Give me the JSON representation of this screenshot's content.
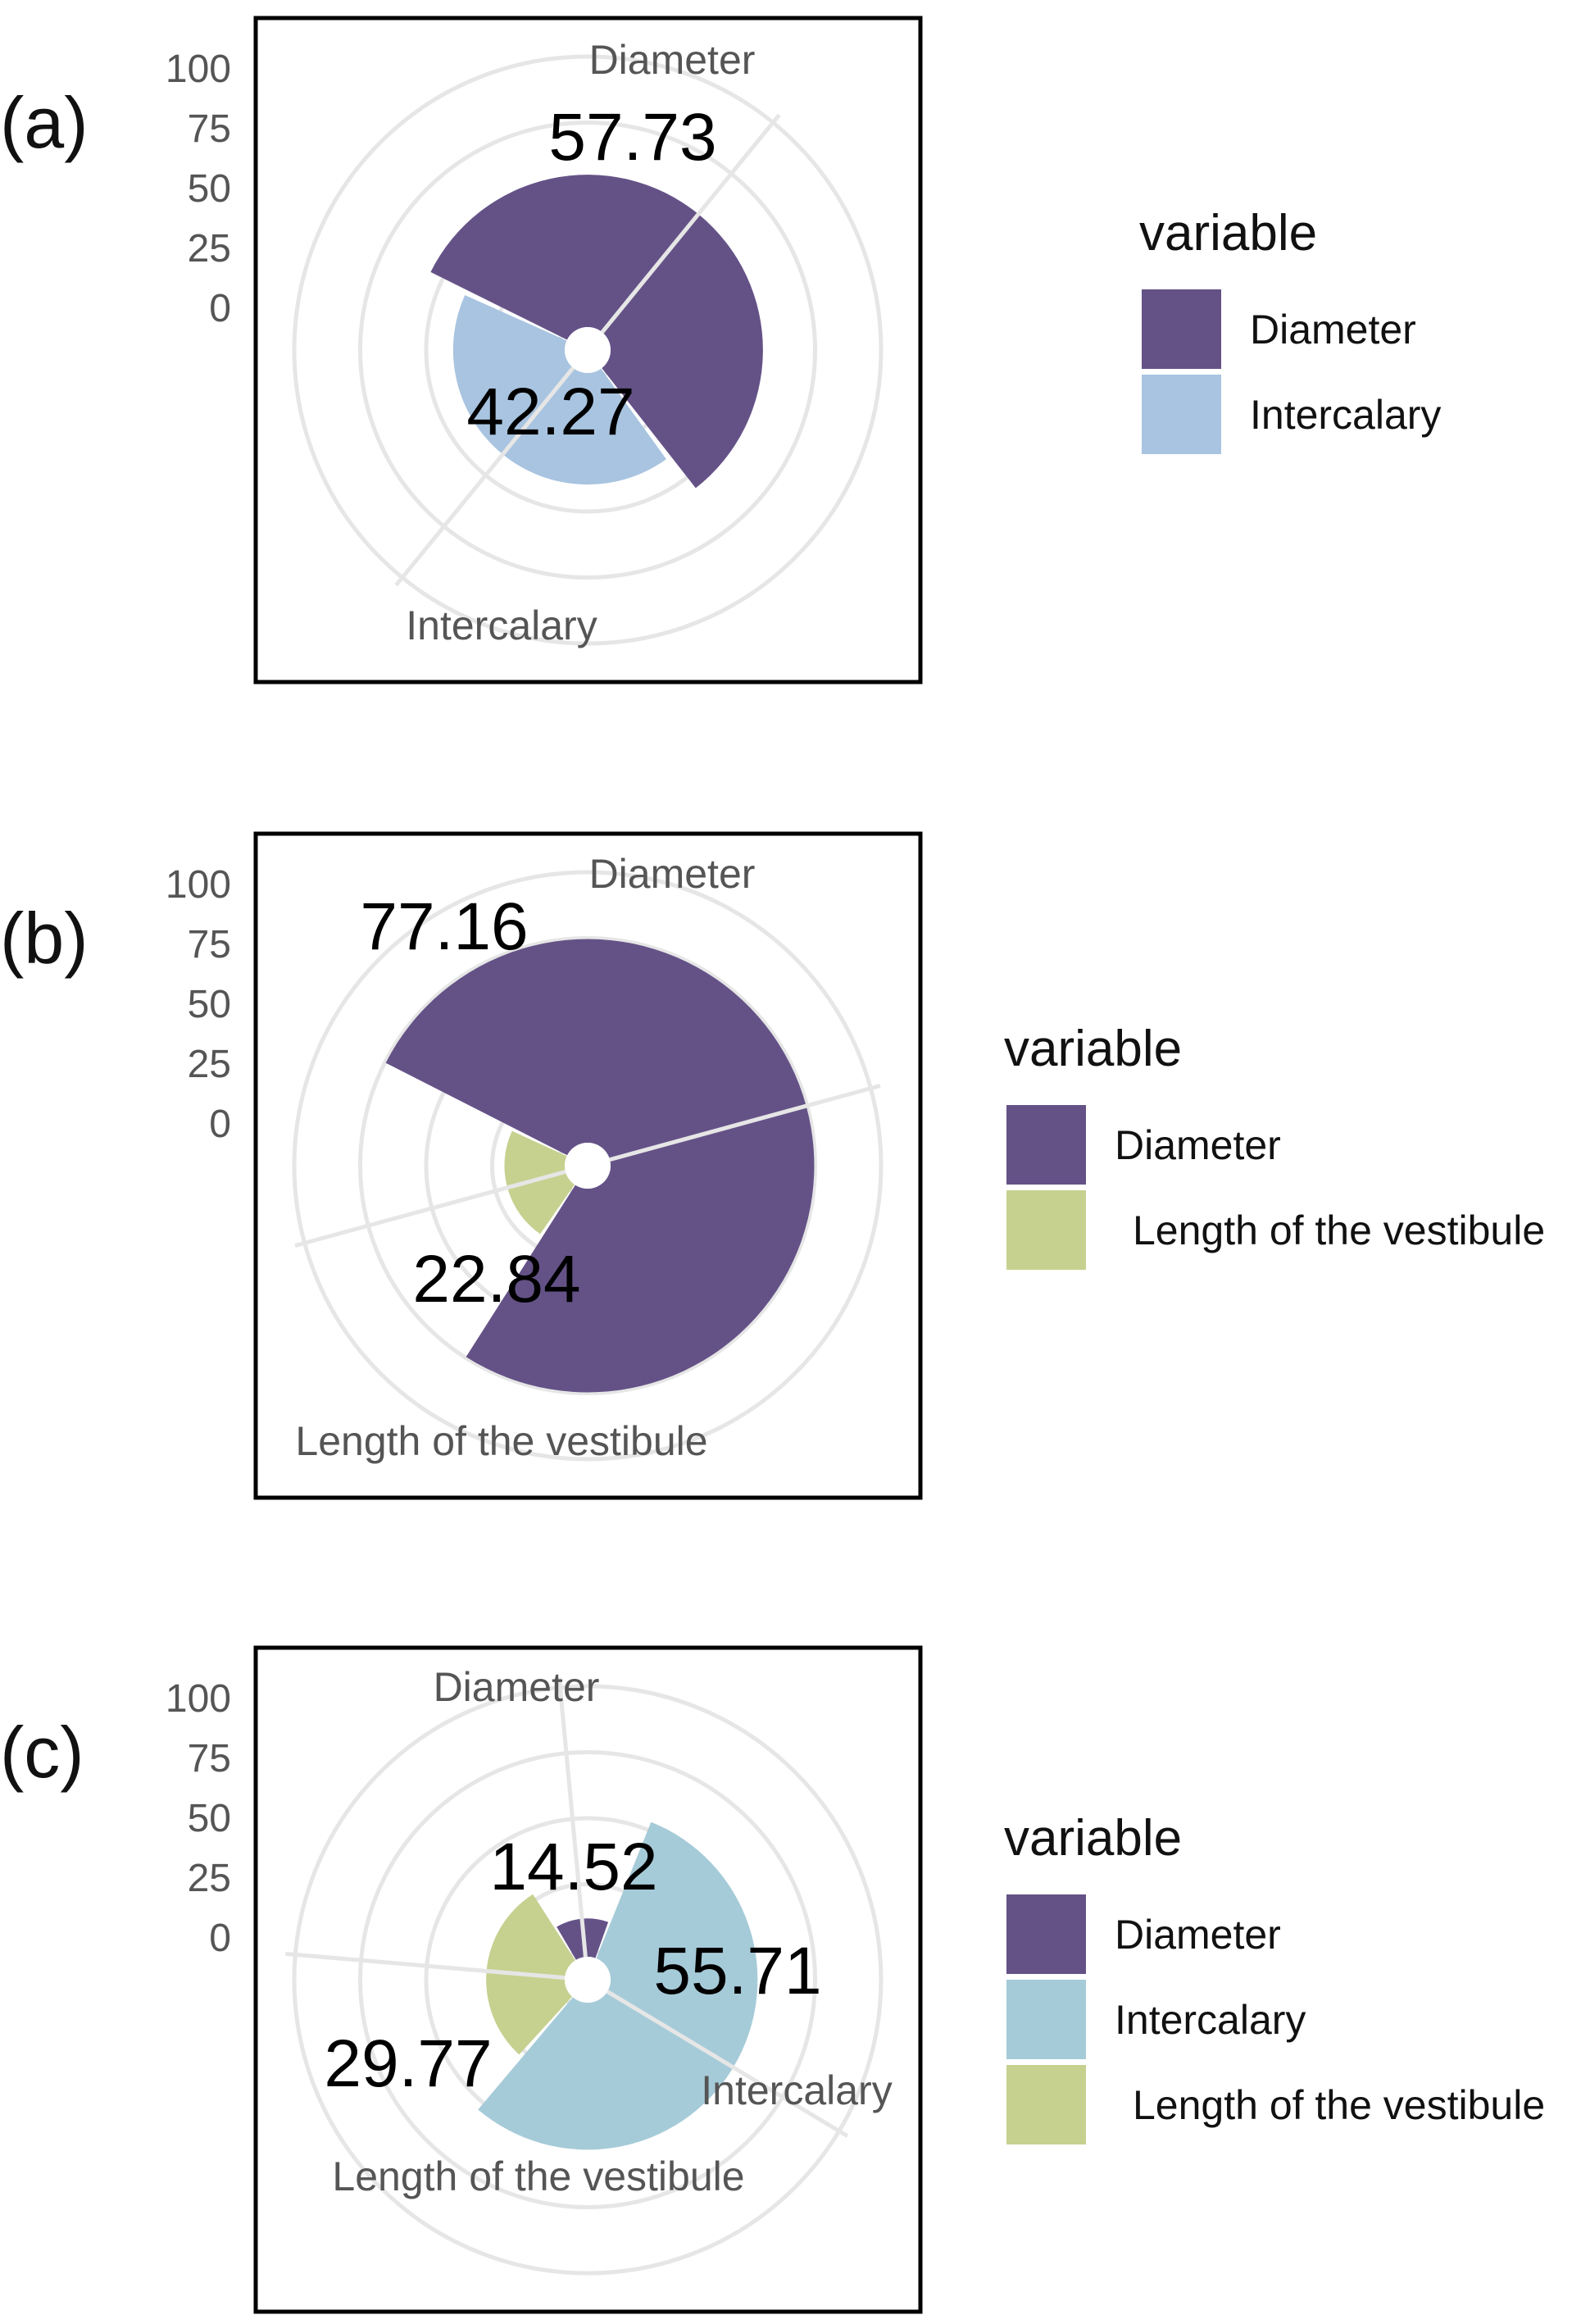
{
  "colors": {
    "diameter": "#645287",
    "intercalary_a": "#a8c4e0",
    "intercalary_c": "#a6cbd8",
    "vestibule": "#c6d190",
    "grid": "#e6e6e6"
  },
  "chart_data": [
    {
      "type": "pie",
      "panel_label": "(a)",
      "coord": "polar",
      "radial_ticks": [
        "0",
        "25",
        "50",
        "75",
        "100"
      ],
      "rlim": [
        0,
        100
      ],
      "grid": true,
      "legend_position": "right",
      "legend_title": "variable",
      "categories": [
        "Diameter",
        "Intercalary"
      ],
      "values": [
        57.73,
        42.27
      ],
      "value_labels": [
        "57.73",
        "42.27"
      ],
      "legend_entries": [
        "Diameter",
        "Intercalary"
      ]
    },
    {
      "type": "pie",
      "panel_label": "(b)",
      "coord": "polar",
      "radial_ticks": [
        "0",
        "25",
        "50",
        "75",
        "100"
      ],
      "rlim": [
        0,
        100
      ],
      "grid": true,
      "legend_position": "right",
      "legend_title": "variable",
      "categories": [
        "Diameter",
        "Length of the vestibule"
      ],
      "values": [
        77.16,
        22.84
      ],
      "value_labels": [
        "77.16",
        "22.84"
      ],
      "legend_entries": [
        "Diameter",
        "Length of the vestibule"
      ]
    },
    {
      "type": "pie",
      "panel_label": "(c)",
      "coord": "polar",
      "radial_ticks": [
        "0",
        "25",
        "50",
        "75",
        "100"
      ],
      "rlim": [
        0,
        100
      ],
      "grid": true,
      "legend_position": "right",
      "legend_title": "variable",
      "categories": [
        "Diameter",
        "Intercalary",
        "Length of the vestibule"
      ],
      "values": [
        14.52,
        55.71,
        29.77
      ],
      "value_labels": [
        "14.52",
        "55.71",
        "29.77"
      ],
      "legend_entries": [
        "Diameter",
        "Intercalary",
        "Length of the vestibule"
      ]
    }
  ]
}
